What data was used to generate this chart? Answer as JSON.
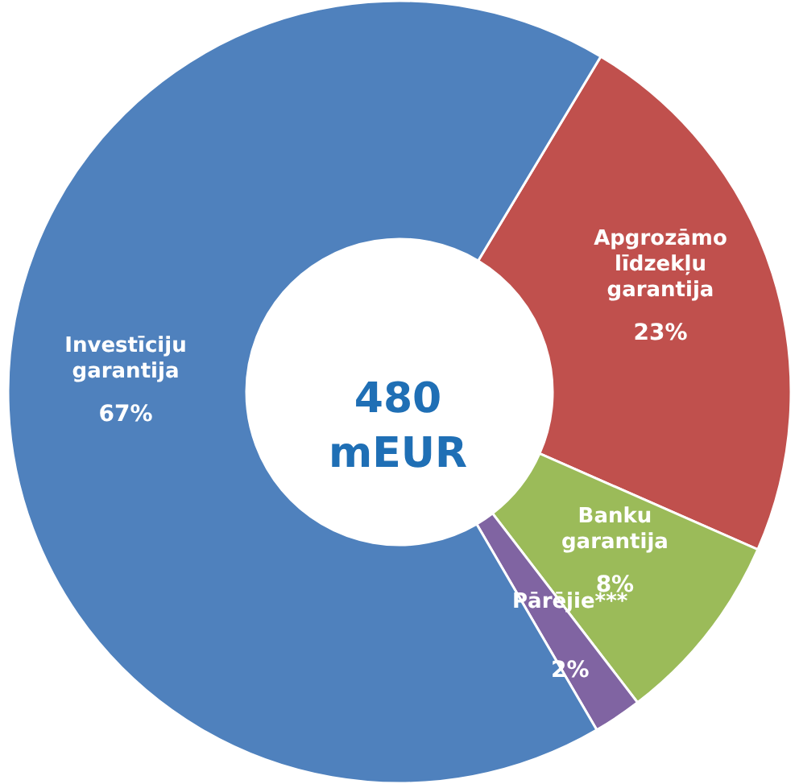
{
  "chart_data": {
    "type": "donut",
    "categories": [
      "Apgrozāmo līdzekļu garantija",
      "Banku garantija",
      "Pārējie***",
      "Investīciju garantija"
    ],
    "values": [
      23,
      8,
      2,
      67
    ],
    "colors": [
      "#c0504d",
      "#9bbb59",
      "#8064a2",
      "#4f81bd"
    ],
    "value_labels": [
      "23%",
      "8%",
      "2%",
      "67%"
    ],
    "annotations": [
      "480 mEUR"
    ],
    "legend": false
  }
}
